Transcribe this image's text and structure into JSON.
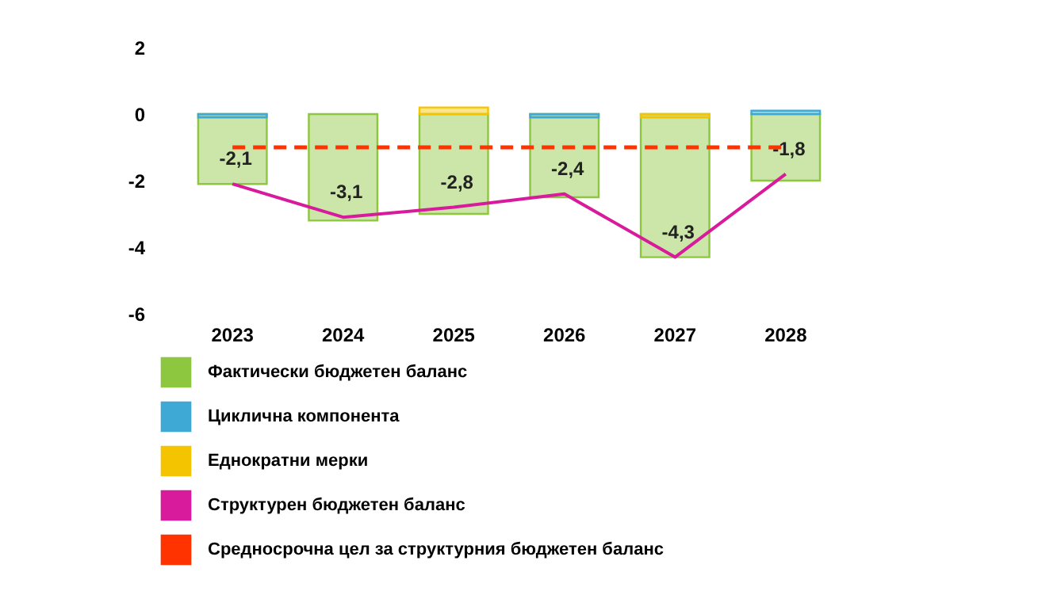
{
  "chart_data": {
    "type": "bar",
    "categories": [
      "2023",
      "2024",
      "2025",
      "2026",
      "2027",
      "2028"
    ],
    "series": [
      {
        "name": "Фактически бюджетен баланс",
        "type": "bar",
        "color": "#8dc63f",
        "values": [
          -2.1,
          -3.2,
          -3.0,
          -2.5,
          -4.3,
          -2.0
        ]
      },
      {
        "name": "Циклична компонента",
        "type": "bar",
        "color": "#3fa9d6",
        "values": [
          -0.1,
          null,
          null,
          -0.1,
          null,
          0.1
        ]
      },
      {
        "name": "Еднократни мерки",
        "type": "bar",
        "color": "#f5c400",
        "values": [
          null,
          null,
          0.2,
          null,
          -0.1,
          null
        ]
      },
      {
        "name": "Структурен бюджетен баланс",
        "type": "line",
        "color": "#d81b9c",
        "values": [
          -2.1,
          -3.1,
          -2.8,
          -2.4,
          -4.3,
          -1.8
        ],
        "value_labels": [
          "-2,1",
          "-3,1",
          "-2,8",
          "-2,4",
          "-4,3",
          "-1,8"
        ]
      }
    ],
    "ref_lines": [
      {
        "axis": "y",
        "value": -1,
        "label": "Средносрочна цел за структурния бюджетен баланс",
        "color": "#ff3300",
        "line_style": "dashed"
      }
    ],
    "ylim": [
      -6,
      2
    ],
    "yticks": [
      -6,
      -4,
      -2,
      0,
      2
    ],
    "grid": false,
    "legend": "bottom"
  }
}
